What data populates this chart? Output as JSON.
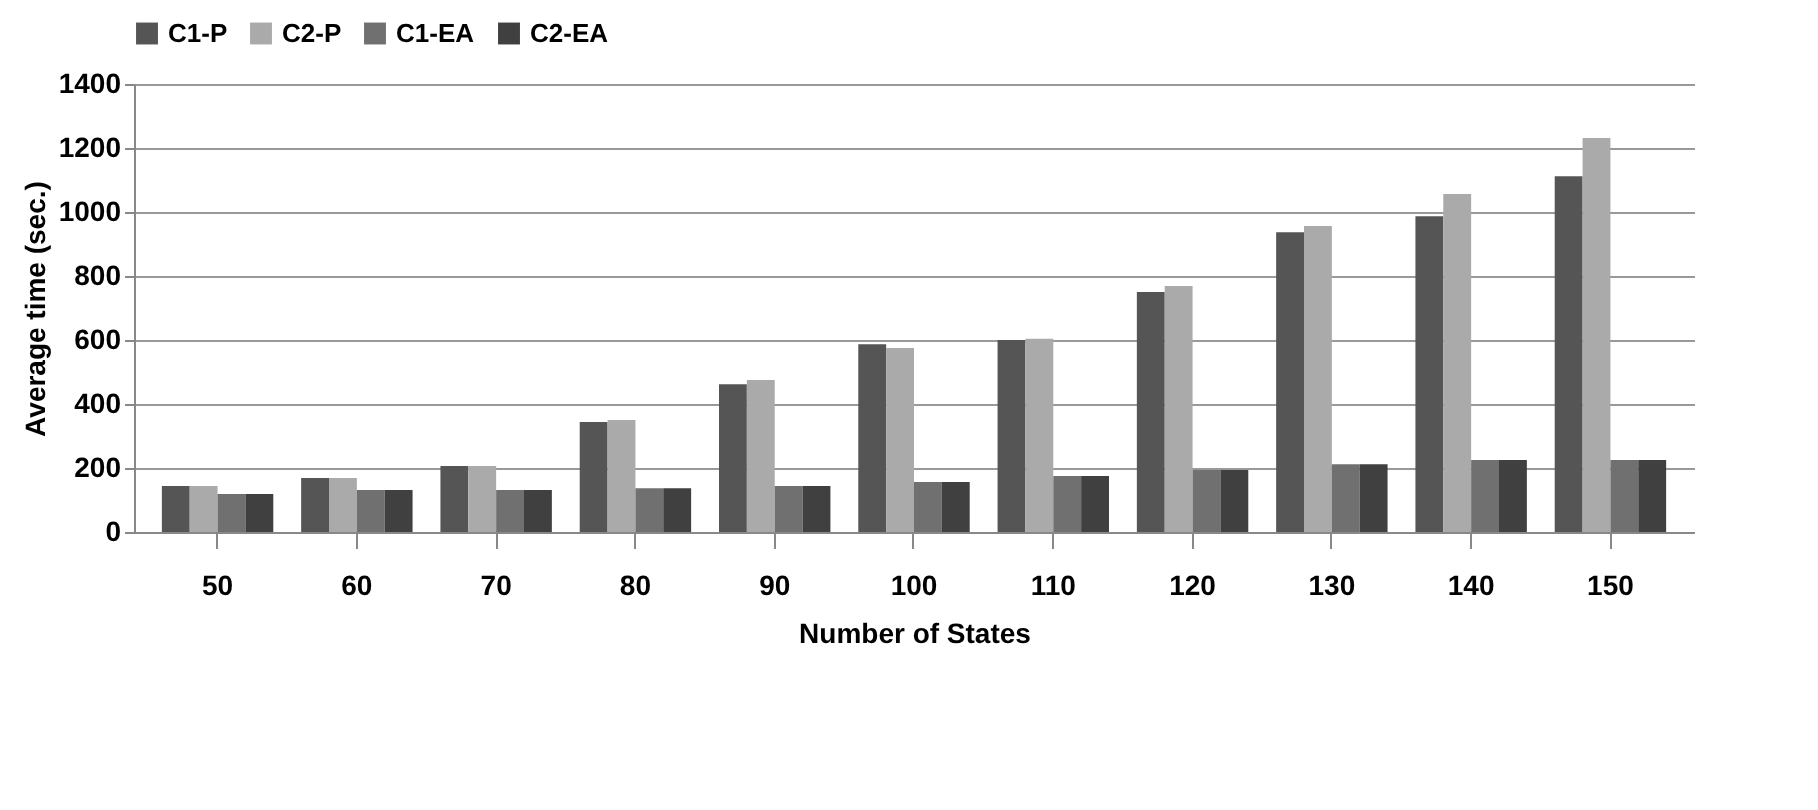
{
  "chart_data": {
    "type": "bar",
    "xlabel": "Number of States",
    "ylabel": "Average  time (sec.)",
    "categories": [
      "50",
      "60",
      "70",
      "80",
      "90",
      "100",
      "110",
      "120",
      "130",
      "140",
      "150"
    ],
    "series": [
      {
        "name": "C1-P",
        "color": "#555555",
        "values": [
          144,
          169,
          206,
          344,
          462,
          587,
          600,
          750,
          937,
          987,
          1112
        ]
      },
      {
        "name": "C2-P",
        "color": "#aaaaaa",
        "values": [
          144,
          169,
          206,
          350,
          475,
          575,
          604,
          769,
          956,
          1056,
          1231
        ]
      },
      {
        "name": "C1-EA",
        "color": "#707070",
        "values": [
          119,
          131,
          131,
          137,
          144,
          156,
          175,
          194,
          212,
          225,
          225
        ]
      },
      {
        "name": "C2-EA",
        "color": "#404040",
        "values": [
          119,
          131,
          131,
          137,
          144,
          156,
          175,
          194,
          212,
          225,
          225
        ]
      }
    ],
    "ylim": [
      0,
      1400
    ],
    "yticks": [
      0,
      200,
      400,
      600,
      800,
      1000,
      1200,
      1400
    ],
    "grid": "y",
    "legend": "top"
  }
}
